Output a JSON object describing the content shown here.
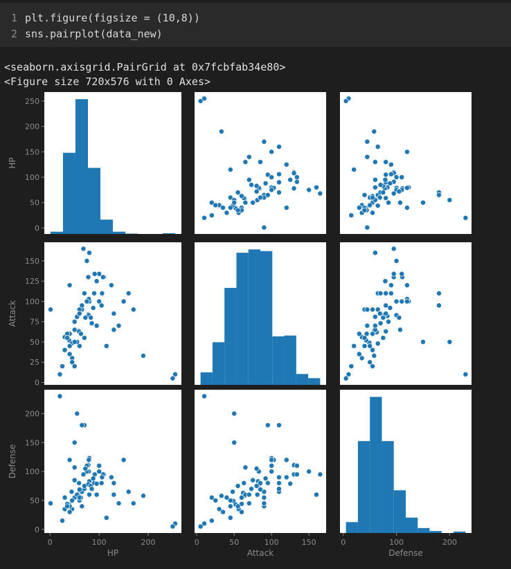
{
  "code": {
    "lines": [
      {
        "number": "1",
        "text": "plt.figure(figsize = (10,8))"
      },
      {
        "number": "2",
        "text": "sns.pairplot(data_new)"
      }
    ]
  },
  "output": {
    "lines": [
      "<seaborn.axisgrid.PairGrid at 0x7fcbfab34e80>",
      "<Figure size 720x576 with 0 Axes>"
    ]
  },
  "chart_data": {
    "type": "pairplot",
    "color": "#1f77b4",
    "variables": [
      {
        "name": "HP",
        "lim": [
          -11.7,
          267.7
        ],
        "yticks": [
          0,
          50,
          100,
          150,
          200,
          250
        ],
        "xticks": [
          0,
          100,
          200
        ],
        "bins": [
          1,
          26.4,
          51.8,
          77.2,
          102.6,
          128,
          153.4,
          178.8,
          204.2,
          229.6,
          255
        ],
        "counts": [
          6,
          215,
          357,
          175,
          38,
          6,
          1,
          0,
          0,
          2
        ]
      },
      {
        "name": "Attack",
        "lim": [
          -3,
          173
        ],
        "yticks": [
          0,
          25,
          50,
          75,
          100,
          125,
          150
        ],
        "xticks": [
          0,
          50,
          100,
          150
        ],
        "bins": [
          5,
          21,
          37,
          53,
          69,
          85,
          101,
          117,
          133,
          149,
          165
        ],
        "counts": [
          15,
          51,
          116,
          158,
          162,
          160,
          58,
          59,
          13,
          8
        ]
      },
      {
        "name": "Defense",
        "lim": [
          -6.25,
          241.25
        ],
        "yticks": [
          0,
          50,
          100,
          150,
          200
        ],
        "xticks": [
          0,
          100,
          200
        ],
        "bins": [
          5,
          27.5,
          50,
          72.5,
          95,
          117.5,
          140,
          162.5,
          185,
          207.5,
          230
        ],
        "counts": [
          22,
          185,
          274,
          185,
          86,
          31,
          10,
          4,
          0,
          3
        ]
      }
    ],
    "records": [
      [
        45,
        49,
        49
      ],
      [
        60,
        62,
        63
      ],
      [
        80,
        82,
        83
      ],
      [
        80,
        100,
        123
      ],
      [
        39,
        52,
        43
      ],
      [
        58,
        64,
        58
      ],
      [
        78,
        84,
        78
      ],
      [
        78,
        130,
        111
      ],
      [
        44,
        48,
        65
      ],
      [
        59,
        63,
        80
      ],
      [
        79,
        83,
        100
      ],
      [
        79,
        103,
        120
      ],
      [
        45,
        30,
        35
      ],
      [
        50,
        20,
        55
      ],
      [
        60,
        45,
        50
      ],
      [
        40,
        35,
        30
      ],
      [
        65,
        90,
        40
      ],
      [
        40,
        45,
        40
      ],
      [
        63,
        60,
        55
      ],
      [
        83,
        80,
        75
      ],
      [
        30,
        56,
        35
      ],
      [
        55,
        81,
        60
      ],
      [
        40,
        60,
        30
      ],
      [
        65,
        90,
        65
      ],
      [
        35,
        60,
        44
      ],
      [
        60,
        90,
        55
      ],
      [
        35,
        55,
        40
      ],
      [
        50,
        75,
        85
      ],
      [
        75,
        100,
        110
      ],
      [
        90,
        110,
        80
      ],
      [
        100,
        134,
        110
      ],
      [
        110,
        130,
        95
      ],
      [
        130,
        85,
        80
      ],
      [
        115,
        45,
        20
      ],
      [
        140,
        70,
        45
      ],
      [
        105,
        95,
        80
      ],
      [
        95,
        125,
        79
      ],
      [
        70,
        110,
        180
      ],
      [
        50,
        65,
        107
      ],
      [
        20,
        10,
        230
      ],
      [
        255,
        10,
        10
      ],
      [
        250,
        5,
        5
      ],
      [
        190,
        33,
        58
      ],
      [
        170,
        90,
        45
      ],
      [
        160,
        110,
        65
      ],
      [
        150,
        100,
        120
      ],
      [
        125,
        120,
        90
      ],
      [
        108,
        130,
        95
      ],
      [
        80,
        160,
        60
      ],
      [
        91,
        134,
        95
      ],
      [
        100,
        100,
        100
      ],
      [
        70,
        110,
        70
      ],
      [
        25,
        20,
        15
      ],
      [
        1,
        90,
        45
      ],
      [
        106,
        110,
        90
      ],
      [
        130,
        65,
        60
      ],
      [
        55,
        50,
        200
      ],
      [
        75,
        150,
        100
      ],
      [
        68,
        165,
        95
      ],
      [
        65,
        95,
        180
      ],
      [
        30,
        40,
        55
      ],
      [
        45,
        25,
        50
      ],
      [
        60,
        85,
        69
      ],
      [
        85,
        73,
        70
      ],
      [
        72,
        80,
        105
      ],
      [
        50,
        50,
        150
      ],
      [
        40,
        120,
        120
      ],
      [
        95,
        70,
        60
      ],
      [
        70,
        55,
        75
      ],
      [
        88,
        92,
        88
      ]
    ]
  }
}
